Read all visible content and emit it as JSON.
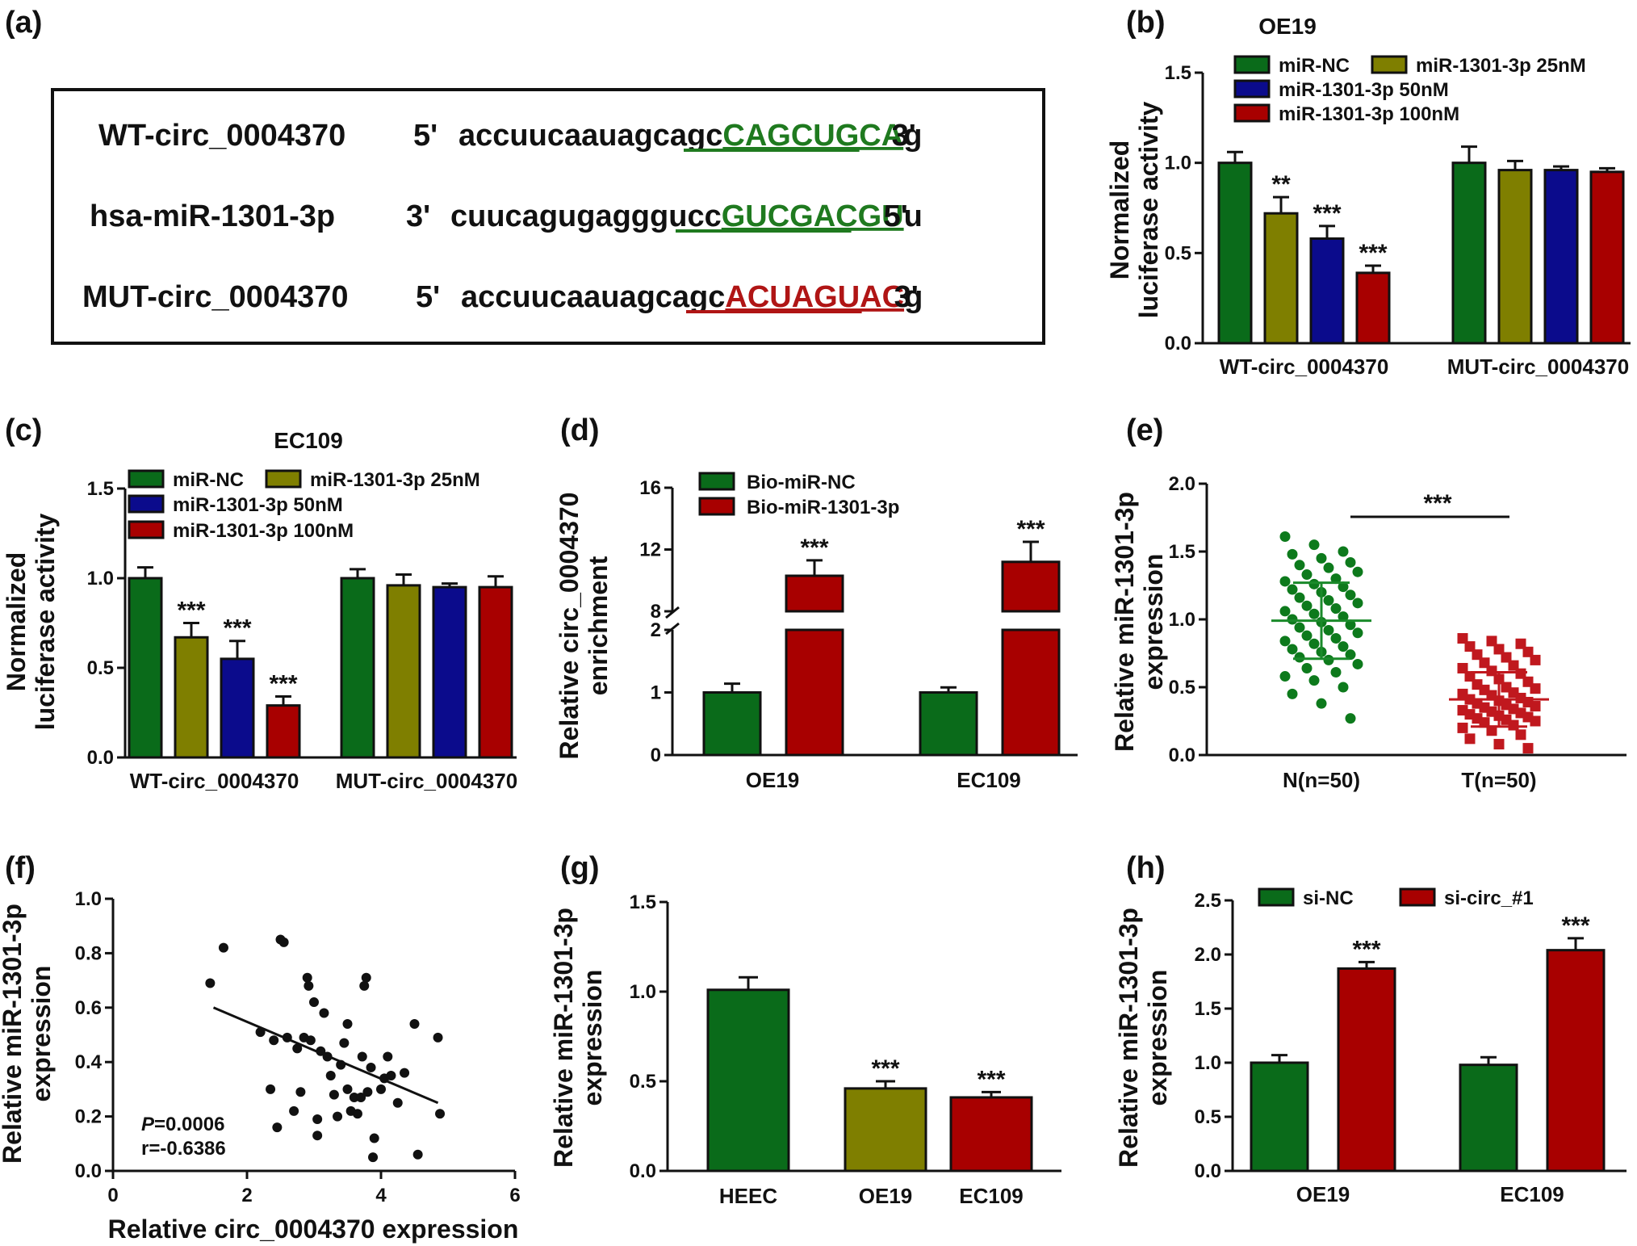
{
  "panel_labels": {
    "a": "(a)",
    "b": "(b)",
    "c": "(c)",
    "d": "(d)",
    "e": "(e)",
    "f": "(f)",
    "g": "(g)",
    "h": "(h)"
  },
  "sequences": {
    "rows": [
      {
        "name": "WT-circ_0004370",
        "p1": "5'",
        "plain": "accuucaauagcagc",
        "hl": "CAGCUGCA",
        "tail": "g",
        "p2": "3'",
        "color": "#1f7a1f"
      },
      {
        "name": "hsa-miR-1301-3p",
        "p1": "3'",
        "plain": "cuucagugagggucc",
        "hl": "GUCGACGU",
        "tail": "u",
        "p2": "5'",
        "color": "#1f7a1f"
      },
      {
        "name": "MUT-circ_0004370",
        "p1": "5'",
        "plain": "accuucaauagcagc",
        "hl": "ACUAGUAC",
        "tail": "g",
        "p2": "3'",
        "color": "#b01515"
      }
    ]
  },
  "colors": {
    "green": "#0a6b1a",
    "olive": "#7f7f00",
    "navy": "#0b0b8c",
    "red": "#a80000",
    "dotGreen": "#0d7a1c",
    "dotRed": "#c0181e",
    "line": "#1a8a2a"
  },
  "chart_data": [
    {
      "id": "b",
      "type": "bar",
      "title": "OE19",
      "ylabel": "Normalized luciferase activity",
      "ylabel_lines": [
        "Normalized",
        "luciferase activity"
      ],
      "ylim": [
        0,
        1.5
      ],
      "yticks": [
        "0.0",
        "0.5",
        "1.0",
        "1.5"
      ],
      "categories": [
        "WT-circ_0004370",
        "MUT-circ_0004370"
      ],
      "legend": [
        "miR-NC",
        "miR-1301-3p 25nM",
        "miR-1301-3p 50nM",
        "miR-1301-3p 100nM"
      ],
      "series": [
        {
          "name": "miR-NC",
          "values": [
            1.0,
            1.0
          ],
          "errors": [
            0.06,
            0.09
          ],
          "stars": [
            "",
            ""
          ]
        },
        {
          "name": "miR-1301-3p 25nM",
          "values": [
            0.72,
            0.96
          ],
          "errors": [
            0.09,
            0.05
          ],
          "stars": [
            "**",
            ""
          ]
        },
        {
          "name": "miR-1301-3p 50nM",
          "values": [
            0.58,
            0.96
          ],
          "errors": [
            0.07,
            0.02
          ],
          "stars": [
            "***",
            ""
          ]
        },
        {
          "name": "miR-1301-3p 100nM",
          "values": [
            0.39,
            0.95
          ],
          "errors": [
            0.04,
            0.02
          ],
          "stars": [
            "***",
            ""
          ]
        }
      ]
    },
    {
      "id": "c",
      "type": "bar",
      "title": "EC109",
      "ylabel": "Normalized luciferase activity",
      "ylabel_lines": [
        "Normalized",
        "luciferase activity"
      ],
      "ylim": [
        0,
        1.5
      ],
      "yticks": [
        "0.0",
        "0.5",
        "1.0",
        "1.5"
      ],
      "categories": [
        "WT-circ_0004370",
        "MUT-circ_0004370"
      ],
      "legend": [
        "miR-NC",
        "miR-1301-3p 25nM",
        "miR-1301-3p 50nM",
        "miR-1301-3p 100nM"
      ],
      "series": [
        {
          "name": "miR-NC",
          "values": [
            1.0,
            1.0
          ],
          "errors": [
            0.06,
            0.05
          ],
          "stars": [
            "",
            ""
          ]
        },
        {
          "name": "miR-1301-3p 25nM",
          "values": [
            0.67,
            0.96
          ],
          "errors": [
            0.08,
            0.06
          ],
          "stars": [
            "***",
            ""
          ]
        },
        {
          "name": "miR-1301-3p 50nM",
          "values": [
            0.55,
            0.95
          ],
          "errors": [
            0.1,
            0.02
          ],
          "stars": [
            "***",
            ""
          ]
        },
        {
          "name": "miR-1301-3p 100nM",
          "values": [
            0.29,
            0.95
          ],
          "errors": [
            0.05,
            0.06
          ],
          "stars": [
            "***",
            ""
          ]
        }
      ]
    },
    {
      "id": "d",
      "type": "bar",
      "title": "",
      "ylabel": "Relative circ_0004370 enrichment",
      "ylabel_lines": [
        "Relative circ_0004370",
        "enrichment"
      ],
      "broken_axis": {
        "lower": [
          0,
          2
        ],
        "upper": [
          8,
          16
        ]
      },
      "yticks": [
        "0",
        "1",
        "2",
        "8",
        "12",
        "16"
      ],
      "categories": [
        "OE19",
        "EC109"
      ],
      "legend": [
        "Bio-miR-NC",
        "Bio-miR-1301-3p"
      ],
      "series": [
        {
          "name": "Bio-miR-NC",
          "values": [
            1.0,
            1.0
          ],
          "errors": [
            0.14,
            0.08
          ],
          "stars": [
            "",
            ""
          ]
        },
        {
          "name": "Bio-miR-1301-3p",
          "values": [
            10.3,
            11.2
          ],
          "errors": [
            1.0,
            1.3
          ],
          "stars": [
            "***",
            "***"
          ]
        }
      ]
    },
    {
      "id": "e",
      "type": "scatter",
      "title": "",
      "ylabel": "Relative miR-1301-3p expression",
      "ylabel_lines": [
        "Relative miR-1301-3p",
        "expression"
      ],
      "ylim": [
        0,
        2.0
      ],
      "yticks": [
        "0.0",
        "0.5",
        "1.0",
        "1.5",
        "2.0"
      ],
      "categories": [
        "N(n=50)",
        "T(n=50)"
      ],
      "significance": "***",
      "groups": [
        {
          "name": "N(n=50)",
          "mean": 0.99,
          "sd": 0.28,
          "values": [
            1.61,
            1.55,
            1.5,
            1.48,
            1.45,
            1.42,
            1.4,
            1.38,
            1.35,
            1.33,
            1.3,
            1.28,
            1.26,
            1.24,
            1.22,
            1.2,
            1.18,
            1.16,
            1.14,
            1.12,
            1.1,
            1.08,
            1.06,
            1.04,
            1.02,
            1.0,
            0.98,
            0.96,
            0.94,
            0.92,
            0.9,
            0.88,
            0.86,
            0.84,
            0.82,
            0.8,
            0.78,
            0.76,
            0.74,
            0.72,
            0.7,
            0.67,
            0.64,
            0.61,
            0.58,
            0.55,
            0.5,
            0.45,
            0.38,
            0.27
          ]
        },
        {
          "name": "T(n=50)",
          "mean": 0.41,
          "sd": 0.2,
          "values": [
            0.86,
            0.84,
            0.82,
            0.8,
            0.78,
            0.76,
            0.74,
            0.72,
            0.7,
            0.68,
            0.66,
            0.64,
            0.62,
            0.6,
            0.58,
            0.56,
            0.54,
            0.52,
            0.5,
            0.49,
            0.48,
            0.46,
            0.45,
            0.44,
            0.42,
            0.41,
            0.4,
            0.39,
            0.38,
            0.37,
            0.36,
            0.35,
            0.34,
            0.33,
            0.32,
            0.31,
            0.3,
            0.29,
            0.28,
            0.27,
            0.26,
            0.25,
            0.24,
            0.22,
            0.2,
            0.18,
            0.15,
            0.12,
            0.08,
            0.05
          ]
        }
      ]
    },
    {
      "id": "f",
      "type": "scatter",
      "title": "",
      "xlabel": "Relative circ_0004370 expression",
      "ylabel": "Relative miR-1301-3p expression",
      "ylabel_lines": [
        "Relative miR-1301-3p",
        "expression"
      ],
      "xlim": [
        0,
        6
      ],
      "ylim": [
        0,
        1.0
      ],
      "xticks": [
        "0",
        "2",
        "4",
        "6"
      ],
      "yticks": [
        "0.0",
        "0.2",
        "0.4",
        "0.6",
        "0.8",
        "1.0"
      ],
      "stat_p_label": "P",
      "stat_p_value": "=0.0006",
      "stat_r": "r=-0.6386",
      "fit": {
        "x": [
          1.5,
          4.85
        ],
        "y": [
          0.6,
          0.25
        ]
      },
      "points": [
        [
          1.45,
          0.69
        ],
        [
          1.65,
          0.82
        ],
        [
          2.2,
          0.51
        ],
        [
          2.35,
          0.3
        ],
        [
          2.4,
          0.48
        ],
        [
          2.45,
          0.16
        ],
        [
          2.5,
          0.85
        ],
        [
          2.55,
          0.84
        ],
        [
          2.6,
          0.49
        ],
        [
          2.7,
          0.22
        ],
        [
          2.75,
          0.45
        ],
        [
          2.8,
          0.29
        ],
        [
          2.85,
          0.49
        ],
        [
          2.9,
          0.71
        ],
        [
          2.92,
          0.68
        ],
        [
          2.95,
          0.48
        ],
        [
          3.0,
          0.62
        ],
        [
          3.05,
          0.13
        ],
        [
          3.05,
          0.19
        ],
        [
          3.1,
          0.44
        ],
        [
          3.15,
          0.58
        ],
        [
          3.2,
          0.42
        ],
        [
          3.25,
          0.35
        ],
        [
          3.3,
          0.28
        ],
        [
          3.35,
          0.2
        ],
        [
          3.4,
          0.39
        ],
        [
          3.45,
          0.47
        ],
        [
          3.5,
          0.54
        ],
        [
          3.5,
          0.3
        ],
        [
          3.55,
          0.22
        ],
        [
          3.6,
          0.27
        ],
        [
          3.65,
          0.21
        ],
        [
          3.7,
          0.27
        ],
        [
          3.72,
          0.42
        ],
        [
          3.75,
          0.68
        ],
        [
          3.78,
          0.71
        ],
        [
          3.8,
          0.29
        ],
        [
          3.85,
          0.38
        ],
        [
          3.88,
          0.05
        ],
        [
          3.9,
          0.12
        ],
        [
          4.0,
          0.3
        ],
        [
          4.05,
          0.34
        ],
        [
          4.1,
          0.42
        ],
        [
          4.15,
          0.35
        ],
        [
          4.25,
          0.25
        ],
        [
          4.35,
          0.36
        ],
        [
          4.5,
          0.54
        ],
        [
          4.55,
          0.06
        ],
        [
          4.85,
          0.49
        ],
        [
          4.88,
          0.21
        ]
      ]
    },
    {
      "id": "g",
      "type": "bar",
      "title": "",
      "ylabel": "Relative miR-1301-3p expression",
      "ylabel_lines": [
        "Relative miR-1301-3p",
        "expression"
      ],
      "ylim": [
        0,
        1.5
      ],
      "yticks": [
        "0.0",
        "0.5",
        "1.0",
        "1.5"
      ],
      "categories": [
        "HEEC",
        "OE19",
        "EC109"
      ],
      "values": [
        1.01,
        0.46,
        0.41
      ],
      "errors": [
        0.07,
        0.04,
        0.03
      ],
      "stars": [
        "",
        "***",
        "***"
      ]
    },
    {
      "id": "h",
      "type": "bar",
      "title": "",
      "ylabel": "Relative miR-1301-3p expression",
      "ylabel_lines": [
        "Relative miR-1301-3p",
        "expression"
      ],
      "ylim": [
        0,
        2.5
      ],
      "yticks": [
        "0.0",
        "0.5",
        "1.0",
        "1.5",
        "2.0",
        "2.5"
      ],
      "categories": [
        "OE19",
        "EC109"
      ],
      "legend": [
        "si-NC",
        "si-circ_#1"
      ],
      "series": [
        {
          "name": "si-NC",
          "values": [
            1.0,
            0.98
          ],
          "errors": [
            0.07,
            0.07
          ],
          "stars": [
            "",
            ""
          ]
        },
        {
          "name": "si-circ_#1",
          "values": [
            1.87,
            2.04
          ],
          "errors": [
            0.06,
            0.11
          ],
          "stars": [
            "***",
            "***"
          ]
        }
      ]
    }
  ]
}
